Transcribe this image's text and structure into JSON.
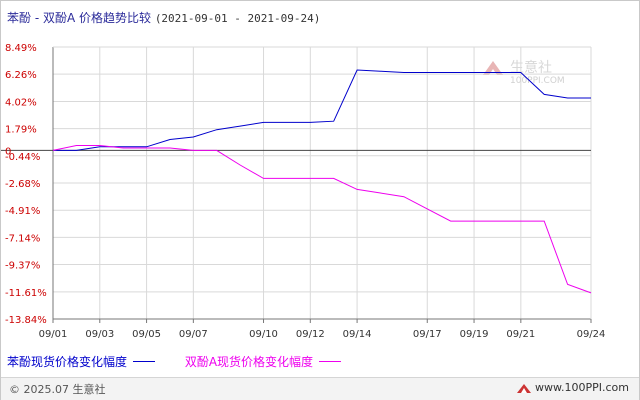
{
  "title": "苯酚 - 双酚A 价格趋势比较",
  "date_range": "(2021-09-01 - 2021-09-24)",
  "watermark": "100PPI.COM",
  "watermark_brand": "生意社",
  "footer": {
    "copyright": "© 2025.07 生意社",
    "url": "www.100PPI.com"
  },
  "colors": {
    "series_1": "#0000cc",
    "series_2": "#ee00ee",
    "grid": "#d9d9d9",
    "axis": "#777777",
    "tick_text": "#cc0000"
  },
  "chart_data": {
    "type": "line",
    "title": "苯酚 - 双酚A 价格趋势比较",
    "xlabel": "",
    "ylabel": "",
    "grid": true,
    "legend_position": "bottom",
    "x_ticks": [
      "09/01",
      "09/03",
      "09/05",
      "09/07",
      "09/10",
      "09/12",
      "09/14",
      "09/17",
      "09/19",
      "09/21",
      "09/24"
    ],
    "y_ticks": [
      "8.49%",
      "6.26%",
      "4.02%",
      "1.79%",
      "0",
      "-0.44%",
      "-2.68%",
      "-4.91%",
      "-7.14%",
      "-9.37%",
      "-11.61%",
      "-13.84%"
    ],
    "ylim": [
      -13.84,
      8.49
    ],
    "series": [
      {
        "name": "苯酚现货价格变化幅度",
        "points": [
          [
            "09/01",
            0
          ],
          [
            "09/02",
            0
          ],
          [
            "09/03",
            0.3
          ],
          [
            "09/04",
            0.3
          ],
          [
            "09/05",
            0.3
          ],
          [
            "09/06",
            0.9
          ],
          [
            "09/07",
            1.1
          ],
          [
            "09/08",
            1.7
          ],
          [
            "09/09",
            2.0
          ],
          [
            "09/10",
            2.3
          ],
          [
            "09/11",
            2.3
          ],
          [
            "09/12",
            2.3
          ],
          [
            "09/13",
            2.4
          ],
          [
            "09/14",
            6.6
          ],
          [
            "09/15",
            6.5
          ],
          [
            "09/16",
            6.4
          ],
          [
            "09/17",
            6.4
          ],
          [
            "09/18",
            6.4
          ],
          [
            "09/19",
            6.4
          ],
          [
            "09/20",
            6.4
          ],
          [
            "09/21",
            6.4
          ],
          [
            "09/22",
            4.6
          ],
          [
            "09/23",
            4.3
          ],
          [
            "09/24",
            4.3
          ]
        ]
      },
      {
        "name": "双酚A现货价格变化幅度",
        "points": [
          [
            "09/01",
            0
          ],
          [
            "09/02",
            0.4
          ],
          [
            "09/03",
            0.4
          ],
          [
            "09/04",
            0.2
          ],
          [
            "09/05",
            0.2
          ],
          [
            "09/06",
            0.2
          ],
          [
            "09/07",
            0
          ],
          [
            "09/08",
            0
          ],
          [
            "09/09",
            -1.2
          ],
          [
            "09/10",
            -2.3
          ],
          [
            "09/11",
            -2.3
          ],
          [
            "09/12",
            -2.3
          ],
          [
            "09/13",
            -2.3
          ],
          [
            "09/14",
            -3.2
          ],
          [
            "09/15",
            -3.5
          ],
          [
            "09/16",
            -3.8
          ],
          [
            "09/17",
            -4.8
          ],
          [
            "09/18",
            -5.8
          ],
          [
            "09/19",
            -5.8
          ],
          [
            "09/20",
            -5.8
          ],
          [
            "09/21",
            -5.8
          ],
          [
            "09/22",
            -5.8
          ],
          [
            "09/23",
            -11.0
          ],
          [
            "09/24",
            -11.7
          ]
        ]
      }
    ]
  }
}
